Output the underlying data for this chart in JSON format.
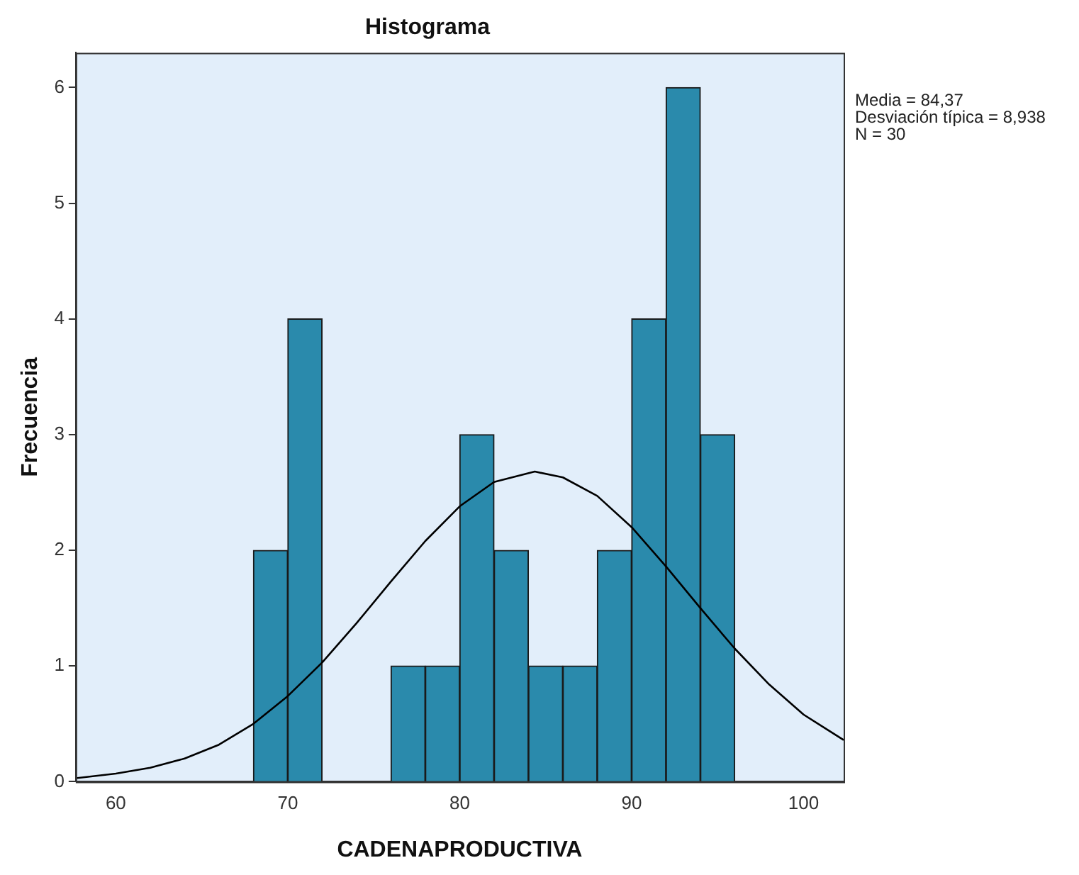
{
  "chart_data": {
    "type": "histogram",
    "title": "Histograma",
    "xlabel": "CADENAPRODUCTIVA",
    "ylabel": "Frecuencia",
    "bins": [
      68,
      70,
      72,
      74,
      76,
      78,
      80,
      82,
      84,
      86,
      88,
      90,
      92,
      94,
      96
    ],
    "values": [
      2,
      4,
      0,
      0,
      1,
      1,
      3,
      2,
      1,
      1,
      2,
      4,
      6,
      3
    ],
    "color": "#2a8aac",
    "series": [
      {
        "type": "line",
        "color": "#000000",
        "x": [
          57.67,
          60,
          62,
          64,
          66,
          68,
          70,
          72,
          74,
          76,
          78,
          80,
          82,
          84.37,
          86,
          88,
          90,
          92,
          94,
          96,
          98,
          100,
          102.33
        ],
        "values": [
          0.03,
          0.07,
          0.12,
          0.2,
          0.32,
          0.5,
          0.74,
          1.03,
          1.37,
          1.73,
          2.08,
          2.38,
          2.59,
          2.68,
          2.63,
          2.47,
          2.2,
          1.86,
          1.5,
          1.15,
          0.84,
          0.58,
          0.36
        ]
      }
    ],
    "xlim": [
      57.67,
      102.33
    ],
    "xticks": [
      60,
      70,
      80,
      90,
      100
    ],
    "ylim": [
      0,
      6.3
    ],
    "yticks": [
      0,
      1,
      2,
      3,
      4,
      5,
      6
    ],
    "grid": false,
    "legend": false,
    "marker": "none",
    "annotations": [
      "Media = 84,37",
      "Desviación típica = 8,938",
      "N = 30"
    ]
  }
}
